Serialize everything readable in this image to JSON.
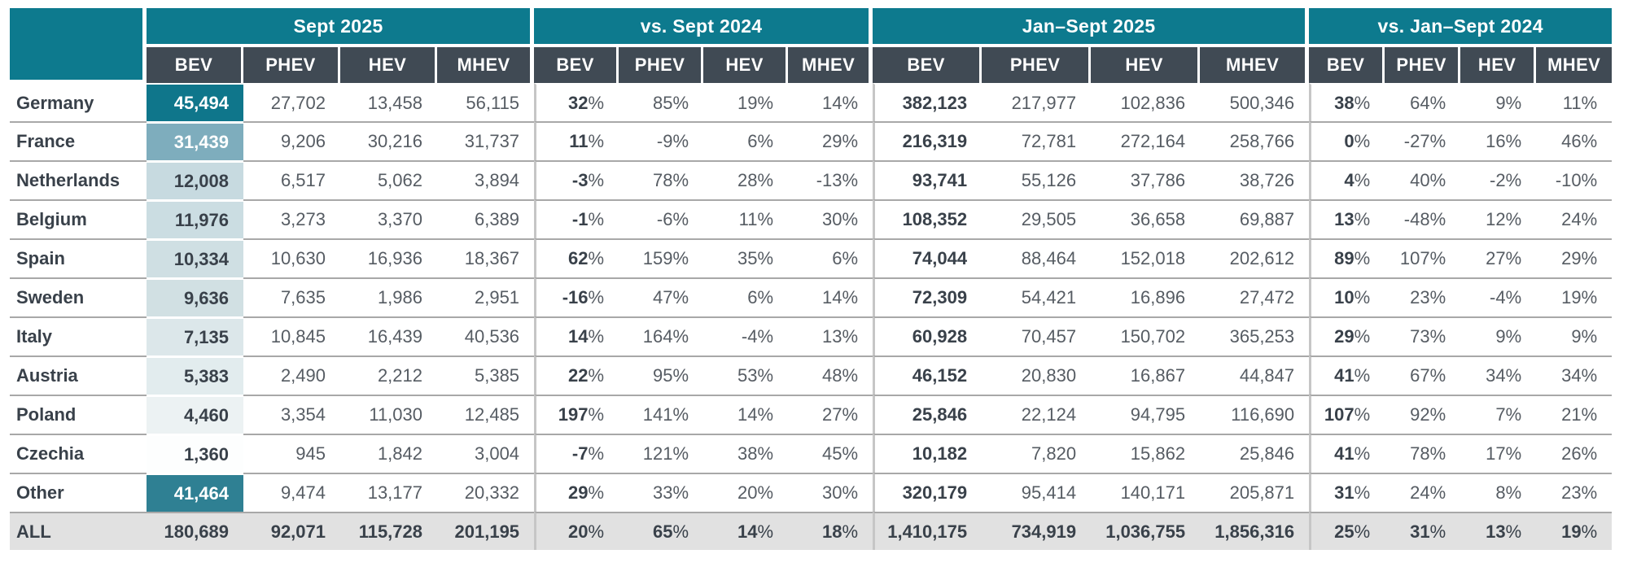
{
  "colors": {
    "teal_header": "#0D7A8E",
    "dark_header": "#404A54",
    "all_row_bg": "#E1E1E1",
    "row_line": "#A8A8A8",
    "group_line": "#C6C6C6",
    "text_bold": "#39414A",
    "text_normal": "#565C63"
  },
  "header": {
    "groups": [
      {
        "id": "sept-2025",
        "label": "Sept 2025",
        "subcols": [
          "BEV",
          "PHEV",
          "HEV",
          "MHEV"
        ]
      },
      {
        "id": "vs-sept-2024",
        "label": "vs. Sept 2024",
        "subcols": [
          "BEV",
          "PHEV",
          "HEV",
          "MHEV"
        ]
      },
      {
        "id": "jan-sept-2025",
        "label": "Jan–Sept 2025",
        "subcols": [
          "BEV",
          "PHEV",
          "HEV",
          "MHEV"
        ]
      },
      {
        "id": "vs-jan-sept-2024",
        "label": "vs. Jan–Sept 2024",
        "subcols": [
          "BEV",
          "PHEV",
          "HEV",
          "MHEV"
        ]
      }
    ]
  },
  "rows": [
    {
      "country": "Germany",
      "heat_bg": "#0F768B",
      "heat_text": "light",
      "sept_2025": [
        "45,494",
        "27,702",
        "13,458",
        "56,115"
      ],
      "vs_sept_2024": [
        "32%",
        "85%",
        "19%",
        "14%"
      ],
      "jan_sept_2025": [
        "382,123",
        "217,977",
        "102,836",
        "500,346"
      ],
      "vs_jan_sept_2024": [
        "38%",
        "64%",
        "9%",
        "11%"
      ]
    },
    {
      "country": "France",
      "heat_bg": "#7EADBD",
      "heat_text": "light",
      "sept_2025": [
        "31,439",
        "9,206",
        "30,216",
        "31,737"
      ],
      "vs_sept_2024": [
        "11%",
        "-9%",
        "6%",
        "29%"
      ],
      "jan_sept_2025": [
        "216,319",
        "72,781",
        "272,164",
        "258,766"
      ],
      "vs_jan_sept_2024": [
        "0%",
        "-27%",
        "16%",
        "46%"
      ]
    },
    {
      "country": "Netherlands",
      "heat_bg": "#C7DAE0",
      "heat_text": "dark",
      "sept_2025": [
        "12,008",
        "6,517",
        "5,062",
        "3,894"
      ],
      "vs_sept_2024": [
        "-3%",
        "78%",
        "28%",
        "-13%"
      ],
      "jan_sept_2025": [
        "93,741",
        "55,126",
        "37,786",
        "38,726"
      ],
      "vs_jan_sept_2024": [
        "4%",
        "40%",
        "-2%",
        "-10%"
      ]
    },
    {
      "country": "Belgium",
      "heat_bg": "#CBDDE2",
      "heat_text": "dark",
      "sept_2025": [
        "11,976",
        "3,273",
        "3,370",
        "6,389"
      ],
      "vs_sept_2024": [
        "-1%",
        "-6%",
        "11%",
        "30%"
      ],
      "jan_sept_2025": [
        "108,352",
        "29,505",
        "36,658",
        "69,887"
      ],
      "vs_jan_sept_2024": [
        "13%",
        "-48%",
        "12%",
        "24%"
      ]
    },
    {
      "country": "Spain",
      "heat_bg": "#CFDFE3",
      "heat_text": "dark",
      "sept_2025": [
        "10,334",
        "10,630",
        "16,936",
        "18,367"
      ],
      "vs_sept_2024": [
        "62%",
        "159%",
        "35%",
        "6%"
      ],
      "jan_sept_2025": [
        "74,044",
        "88,464",
        "152,018",
        "202,612"
      ],
      "vs_jan_sept_2024": [
        "89%",
        "107%",
        "27%",
        "29%"
      ]
    },
    {
      "country": "Sweden",
      "heat_bg": "#D1E0E3",
      "heat_text": "dark",
      "sept_2025": [
        "9,636",
        "7,635",
        "1,986",
        "2,951"
      ],
      "vs_sept_2024": [
        "-16%",
        "47%",
        "6%",
        "14%"
      ],
      "jan_sept_2025": [
        "72,309",
        "54,421",
        "16,896",
        "27,472"
      ],
      "vs_jan_sept_2024": [
        "10%",
        "23%",
        "-4%",
        "19%"
      ]
    },
    {
      "country": "Italy",
      "heat_bg": "#DCE7EA",
      "heat_text": "dark",
      "sept_2025": [
        "7,135",
        "10,845",
        "16,439",
        "40,536"
      ],
      "vs_sept_2024": [
        "14%",
        "164%",
        "-4%",
        "13%"
      ],
      "jan_sept_2025": [
        "60,928",
        "70,457",
        "150,702",
        "365,253"
      ],
      "vs_jan_sept_2024": [
        "29%",
        "73%",
        "9%",
        "9%"
      ]
    },
    {
      "country": "Austria",
      "heat_bg": "#E2ECEE",
      "heat_text": "dark",
      "sept_2025": [
        "5,383",
        "2,490",
        "2,212",
        "5,385"
      ],
      "vs_sept_2024": [
        "22%",
        "95%",
        "53%",
        "48%"
      ],
      "jan_sept_2025": [
        "46,152",
        "20,830",
        "16,867",
        "44,847"
      ],
      "vs_jan_sept_2024": [
        "41%",
        "67%",
        "34%",
        "34%"
      ]
    },
    {
      "country": "Poland",
      "heat_bg": "#ECF2F3",
      "heat_text": "dark",
      "sept_2025": [
        "4,460",
        "3,354",
        "11,030",
        "12,485"
      ],
      "vs_sept_2024": [
        "197%",
        "141%",
        "14%",
        "27%"
      ],
      "jan_sept_2025": [
        "25,846",
        "22,124",
        "94,795",
        "116,690"
      ],
      "vs_jan_sept_2024": [
        "107%",
        "92%",
        "7%",
        "21%"
      ]
    },
    {
      "country": "Czechia",
      "heat_bg": "#FDFEFE",
      "heat_text": "dark",
      "sept_2025": [
        "1,360",
        "945",
        "1,842",
        "3,004"
      ],
      "vs_sept_2024": [
        "-7%",
        "121%",
        "38%",
        "45%"
      ],
      "jan_sept_2025": [
        "10,182",
        "7,820",
        "15,862",
        "25,846"
      ],
      "vs_jan_sept_2024": [
        "41%",
        "78%",
        "17%",
        "26%"
      ]
    },
    {
      "country": "Other",
      "heat_bg": "#2F8093",
      "heat_text": "light",
      "sept_2025": [
        "41,464",
        "9,474",
        "13,177",
        "20,332"
      ],
      "vs_sept_2024": [
        "29%",
        "33%",
        "20%",
        "30%"
      ],
      "jan_sept_2025": [
        "320,179",
        "95,414",
        "140,171",
        "205,871"
      ],
      "vs_jan_sept_2024": [
        "31%",
        "24%",
        "8%",
        "23%"
      ]
    }
  ],
  "total_row": {
    "country": "ALL",
    "sept_2025": [
      "180,689",
      "92,071",
      "115,728",
      "201,195"
    ],
    "vs_sept_2024": [
      "20%",
      "65%",
      "14%",
      "18%"
    ],
    "jan_sept_2025": [
      "1,410,175",
      "734,919",
      "1,036,755",
      "1,856,316"
    ],
    "vs_jan_sept_2024": [
      "25%",
      "31%",
      "13%",
      "19%"
    ]
  }
}
